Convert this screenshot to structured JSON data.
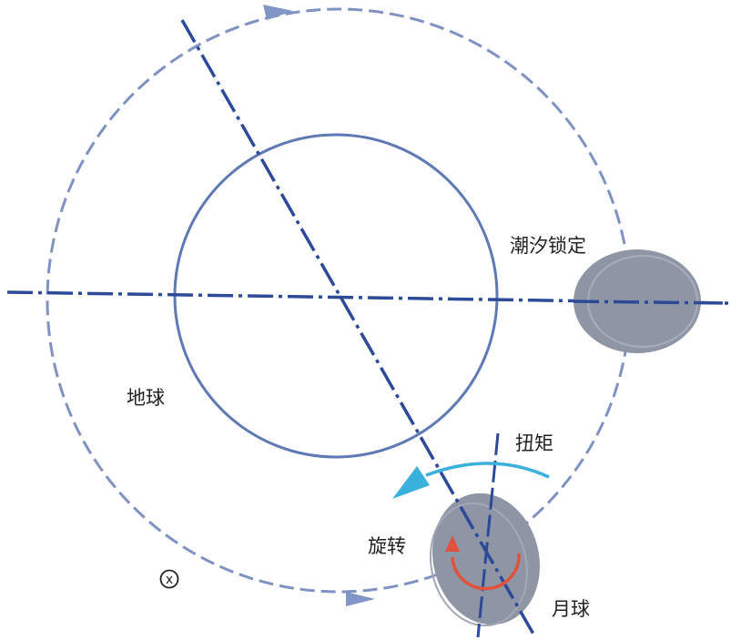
{
  "labels": {
    "tidal_lock": "潮汐锁定",
    "earth": "地球",
    "torque": "扭矩",
    "rotation": "旋转",
    "moon": "月球",
    "x_symbol": "x"
  },
  "colors": {
    "earth_outline": "#5f79b4",
    "orbit_dashed": "#7f92c1",
    "axis_line": "#2c4a97",
    "moon_fill": "#8e95a4",
    "torque_arrow": "#3ab0dd",
    "rotation_arrow": "#e0523e",
    "orbit_arrow": "#8196c6"
  },
  "icons": {
    "orbit_direction": "triangle-arrow-icon",
    "out_of_page": "circled-x-icon"
  }
}
